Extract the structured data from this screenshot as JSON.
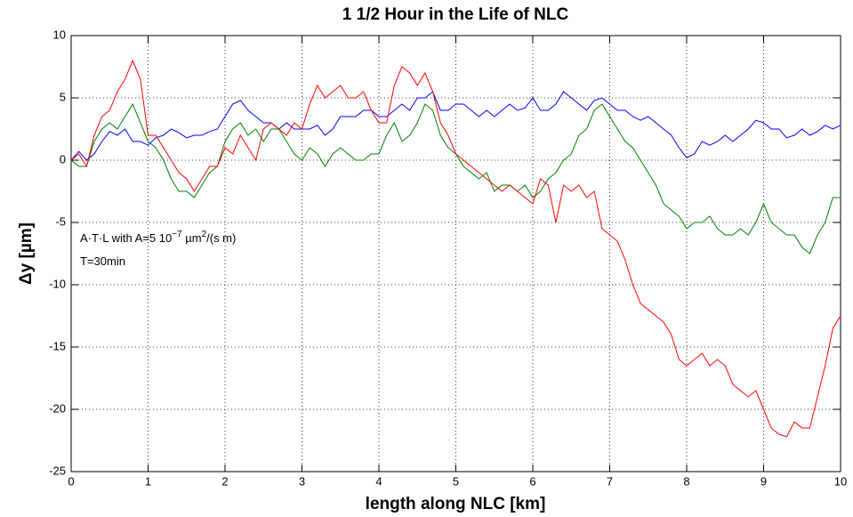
{
  "chart_data": {
    "type": "line",
    "title": "1 1/2 Hour in the Life of NLC",
    "title_color": "#ff0000",
    "x_label": "length along NLC [km]",
    "y_label": "Δy [µm]",
    "annotations": [
      {
        "parts": [
          "A·T·L with A=5 10",
          "−7",
          " µm",
          "2",
          "/(s m)"
        ]
      },
      {
        "parts": [
          "T=30min"
        ]
      }
    ],
    "xlim": [
      0,
      10
    ],
    "ylim": [
      -25,
      10
    ],
    "xticks": [
      0,
      1,
      2,
      3,
      4,
      5,
      6,
      7,
      8,
      9,
      10
    ],
    "yticks": [
      -25,
      -20,
      -15,
      -10,
      -5,
      0,
      5,
      10
    ],
    "grid": true,
    "x": [
      0,
      0.1,
      0.2,
      0.3,
      0.4,
      0.5,
      0.6,
      0.7,
      0.8,
      0.9,
      1,
      1.1,
      1.2,
      1.3,
      1.4,
      1.5,
      1.6,
      1.7,
      1.8,
      1.9,
      2,
      2.1,
      2.2,
      2.3,
      2.4,
      2.5,
      2.6,
      2.7,
      2.8,
      2.9,
      3,
      3.1,
      3.2,
      3.3,
      3.4,
      3.5,
      3.6,
      3.7,
      3.8,
      3.9,
      4,
      4.1,
      4.2,
      4.3,
      4.4,
      4.5,
      4.6,
      4.7,
      4.8,
      4.9,
      5,
      5.1,
      5.2,
      5.3,
      5.4,
      5.5,
      5.6,
      5.7,
      5.8,
      5.9,
      6,
      6.1,
      6.2,
      6.3,
      6.4,
      6.5,
      6.6,
      6.7,
      6.8,
      6.9,
      7,
      7.1,
      7.2,
      7.3,
      7.4,
      7.5,
      7.6,
      7.7,
      7.8,
      7.9,
      8,
      8.1,
      8.2,
      8.3,
      8.4,
      8.5,
      8.6,
      8.7,
      8.8,
      8.9,
      9,
      9.1,
      9.2,
      9.3,
      9.4,
      9.5,
      9.6,
      9.7,
      9.8,
      9.9,
      10
    ],
    "series": [
      {
        "color": "#0000ff",
        "values": [
          0,
          0.7,
          0,
          0.5,
          1.5,
          2.3,
          2,
          2.5,
          1.5,
          1.5,
          1.2,
          1.8,
          2,
          2.5,
          2.2,
          1.8,
          2,
          2,
          2.3,
          2.5,
          3.5,
          4.5,
          4.8,
          4,
          3.5,
          3,
          3,
          2.5,
          3,
          2.5,
          2.5,
          2.5,
          2.8,
          2,
          2.5,
          3.5,
          3.5,
          3.5,
          4,
          4,
          3.5,
          3.5,
          4,
          4.5,
          4,
          5,
          5,
          5.5,
          4,
          4,
          4.5,
          4.5,
          4,
          3.5,
          4,
          3.5,
          4,
          4.5,
          4,
          4.2,
          5,
          4,
          4,
          4.5,
          5.5,
          5,
          4.5,
          4,
          4.8,
          5,
          4.5,
          4,
          4,
          3.5,
          3.2,
          3.5,
          3,
          2.5,
          2,
          1,
          0.2,
          0.5,
          1.5,
          1.2,
          1.5,
          2,
          1.5,
          2,
          2.5,
          3.2,
          3,
          2.5,
          2.5,
          1.8,
          2,
          2.5,
          2,
          2.3,
          2.8,
          2.5,
          2.8
        ]
      },
      {
        "color": "#007f00",
        "values": [
          0,
          -0.5,
          -0.5,
          1.5,
          2.5,
          3,
          2.5,
          3.5,
          4.5,
          3,
          1.5,
          1,
          0,
          -1.5,
          -2.5,
          -2.5,
          -3,
          -2,
          -1,
          -0.5,
          1.5,
          2.5,
          3,
          2,
          2.5,
          1.5,
          2.5,
          2.5,
          1.5,
          0.5,
          0,
          1,
          0.5,
          -0.5,
          0.5,
          1,
          0.5,
          0,
          0,
          0.5,
          0.5,
          2,
          3,
          1.5,
          2,
          3,
          4.5,
          4,
          2,
          1,
          0.5,
          -0.5,
          -1,
          -1.5,
          -1,
          -2.5,
          -2,
          -2,
          -2.5,
          -2,
          -3,
          -2.5,
          -1.5,
          -1,
          0,
          0.5,
          2,
          2.5,
          4,
          4.5,
          3.5,
          2.5,
          1.5,
          1,
          0,
          -1,
          -2,
          -3.5,
          -4,
          -4.5,
          -5.5,
          -5,
          -5,
          -4.5,
          -5.5,
          -6,
          -6,
          -5.5,
          -6,
          -5,
          -3.5,
          -5,
          -5.5,
          -6,
          -6,
          -7,
          -7.5,
          -6,
          -5,
          -3,
          -3
        ]
      },
      {
        "color": "#ff0000",
        "values": [
          0,
          0.5,
          -0.5,
          2,
          3.5,
          4,
          5.5,
          6.5,
          8,
          6.5,
          2,
          2,
          1,
          0,
          -1,
          -1.5,
          -2.5,
          -1.5,
          -0.5,
          -0.5,
          1,
          0.5,
          2,
          1,
          0,
          2.5,
          3,
          2.5,
          2,
          3,
          2.5,
          4.5,
          6,
          5,
          5.5,
          6,
          5,
          5,
          5.5,
          4,
          3,
          3,
          6,
          7.5,
          7,
          6,
          7,
          5.5,
          3,
          2,
          0.5,
          0,
          -0.5,
          -1,
          -1.5,
          -2,
          -2.5,
          -2,
          -2.5,
          -3,
          -3.5,
          -1.5,
          -2,
          -5,
          -2,
          -2.5,
          -2,
          -3,
          -2.5,
          -5.5,
          -6,
          -6.5,
          -8,
          -10,
          -11.5,
          -12,
          -12.5,
          -13,
          -14,
          -16,
          -16.5,
          -16,
          -15.5,
          -16.5,
          -16,
          -16.5,
          -18,
          -18.5,
          -19,
          -18.5,
          -20,
          -21.5,
          -22,
          -22.2,
          -21,
          -21.5,
          -21.5,
          -19,
          -16.5,
          -13.5,
          -12.5
        ]
      }
    ]
  }
}
